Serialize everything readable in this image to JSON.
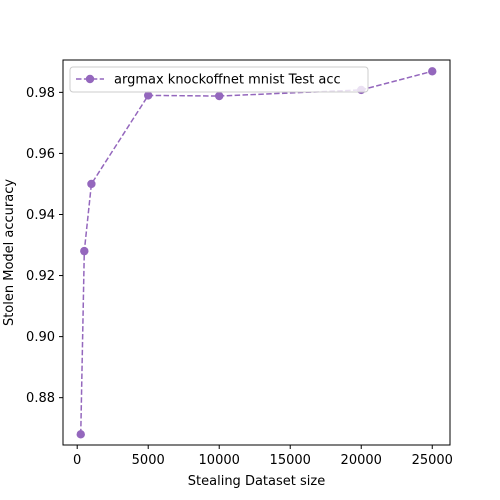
{
  "chart_data": {
    "type": "line",
    "title": "",
    "xlabel": "Stealing Dataset size",
    "ylabel": "Stolen Model accuracy",
    "xlim": [
      -1000,
      26250
    ],
    "ylim": [
      0.8645,
      0.9906
    ],
    "xticks": [
      0,
      5000,
      10000,
      15000,
      20000,
      25000
    ],
    "xtick_labels": [
      "0",
      "5000",
      "10000",
      "15000",
      "20000",
      "25000"
    ],
    "yticks": [
      0.88,
      0.9,
      0.92,
      0.94,
      0.96,
      0.98
    ],
    "ytick_labels": [
      "0.88",
      "0.90",
      "0.92",
      "0.94",
      "0.96",
      "0.98"
    ],
    "grid": false,
    "legend_position": "upper-left",
    "series": [
      {
        "name": "argmax knockoffnet mnist Test acc",
        "color": "#9467bd",
        "line_style": "dashed",
        "marker": "circle",
        "x": [
          250,
          500,
          1000,
          5000,
          10000,
          20000,
          25000
        ],
        "y": [
          0.868,
          0.928,
          0.95,
          0.979,
          0.9788,
          0.9808,
          0.9869
        ]
      }
    ]
  }
}
